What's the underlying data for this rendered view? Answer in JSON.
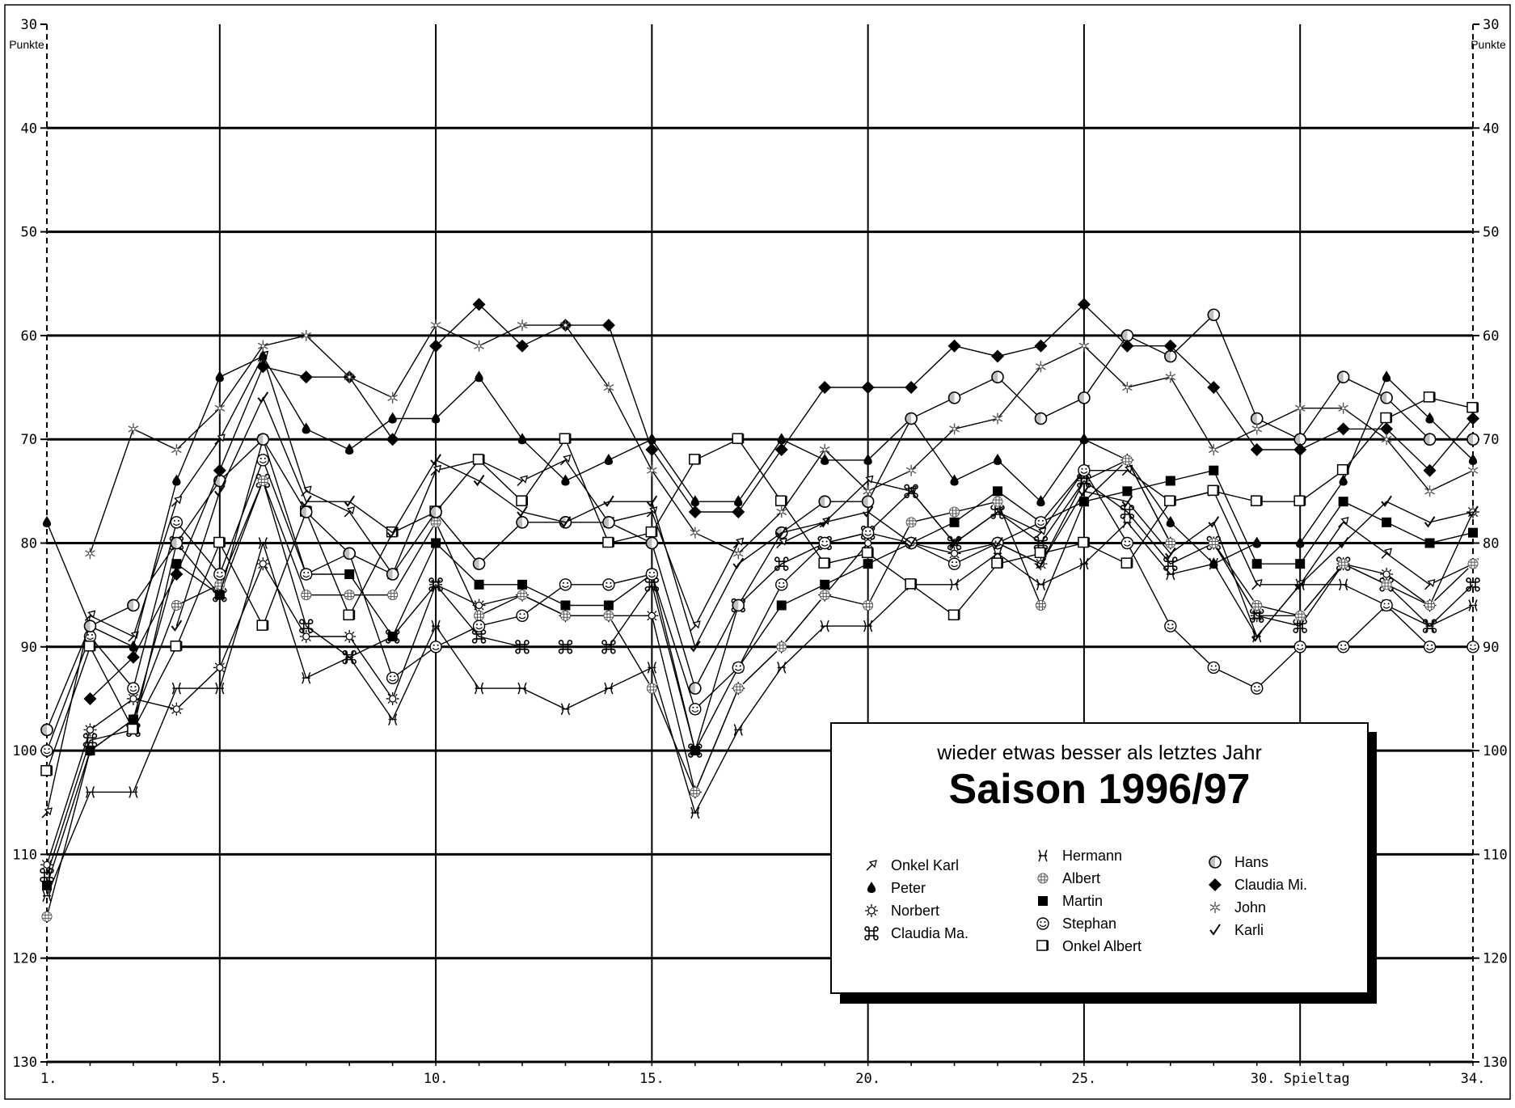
{
  "chart_data": {
    "type": "line",
    "subtitle": "wieder etwas besser als letztes Jahr",
    "title": "Saison 1996/97",
    "ylabel": "Punkte",
    "xlabel": "Spieltag",
    "ylim": [
      30,
      130
    ],
    "y_inverted": true,
    "xlim": [
      1,
      34
    ],
    "y_ticks": [
      30,
      40,
      50,
      60,
      70,
      80,
      90,
      100,
      110,
      120,
      130
    ],
    "x_tick_labels": [
      {
        "x": 1,
        "label": "1."
      },
      {
        "x": 5,
        "label": "5."
      },
      {
        "x": 10,
        "label": "10."
      },
      {
        "x": 15,
        "label": "15."
      },
      {
        "x": 20,
        "label": "20."
      },
      {
        "x": 25,
        "label": "25."
      },
      {
        "x": 30,
        "label": "30. Spieltag"
      },
      {
        "x": 34,
        "label": "34."
      }
    ],
    "grid": true,
    "legend_position": "bottom-right",
    "x": [
      1,
      2,
      3,
      4,
      5,
      6,
      7,
      8,
      9,
      10,
      11,
      12,
      13,
      14,
      15,
      16,
      17,
      18,
      19,
      20,
      21,
      22,
      23,
      24,
      25,
      26,
      27,
      28,
      29,
      30,
      31,
      32,
      33,
      34
    ],
    "series": [
      {
        "name": "Onkel Karl",
        "marker": "arrow",
        "values": [
          106,
          87,
          89,
          76,
          70,
          62,
          75,
          77,
          83,
          73,
          72,
          74,
          72,
          78,
          77,
          88,
          80,
          80,
          78,
          74,
          75,
          80,
          77,
          79,
          73,
          73,
          76,
          75,
          84,
          84,
          78,
          81,
          84,
          82
        ]
      },
      {
        "name": "Peter",
        "marker": "drop",
        "values": [
          78,
          88,
          90,
          74,
          64,
          62,
          69,
          71,
          68,
          68,
          64,
          70,
          74,
          72,
          70,
          76,
          76,
          70,
          72,
          72,
          68,
          74,
          72,
          76,
          70,
          72,
          78,
          82,
          80,
          80,
          74,
          64,
          68,
          72
        ]
      },
      {
        "name": "Norbert",
        "marker": "sun",
        "values": [
          111,
          98,
          95,
          96,
          92,
          82,
          89,
          89,
          95,
          84,
          86,
          85,
          87,
          87,
          87,
          104,
          94,
          90,
          85,
          80,
          80,
          81,
          80,
          82,
          74,
          72,
          80,
          80,
          87,
          87,
          82,
          83,
          86,
          77
        ]
      },
      {
        "name": "Claudia Ma.",
        "marker": "command",
        "values": [
          112,
          99,
          98,
          80,
          85,
          74,
          88,
          91,
          89,
          84,
          89,
          90,
          90,
          90,
          84,
          100,
          86,
          82,
          80,
          79,
          75,
          80,
          77,
          80,
          74,
          77,
          82,
          80,
          87,
          88,
          82,
          84,
          88,
          84
        ]
      },
      {
        "name": "Hermann",
        "marker": "pisces",
        "values": [
          114,
          104,
          104,
          94,
          94,
          80,
          93,
          91,
          97,
          88,
          94,
          94,
          96,
          94,
          92,
          106,
          98,
          92,
          88,
          88,
          84,
          84,
          81,
          84,
          82,
          78,
          83,
          82,
          89,
          84,
          84,
          86,
          88,
          86
        ]
      },
      {
        "name": "Albert",
        "marker": "grid",
        "values": [
          116,
          100,
          97,
          86,
          84,
          74,
          85,
          85,
          85,
          78,
          87,
          85,
          87,
          87,
          94,
          104,
          94,
          90,
          85,
          86,
          78,
          77,
          76,
          86,
          76,
          72,
          80,
          80,
          86,
          87,
          82,
          84,
          86,
          82
        ]
      },
      {
        "name": "Martin",
        "marker": "square",
        "values": [
          113,
          100,
          97,
          82,
          85,
          70,
          83,
          83,
          89,
          80,
          84,
          84,
          86,
          86,
          83,
          100,
          92,
          86,
          84,
          82,
          80,
          78,
          75,
          78,
          76,
          75,
          74,
          73,
          82,
          82,
          76,
          78,
          80,
          79
        ]
      },
      {
        "name": "Stephan",
        "marker": "smiley",
        "values": [
          100,
          89,
          94,
          78,
          83,
          72,
          83,
          81,
          93,
          90,
          88,
          87,
          84,
          84,
          83,
          96,
          92,
          84,
          80,
          79,
          80,
          82,
          80,
          78,
          73,
          80,
          88,
          92,
          94,
          90,
          90,
          86,
          90,
          90
        ]
      },
      {
        "name": "Onkel Albert",
        "marker": "box",
        "values": [
          102,
          90,
          98,
          90,
          80,
          88,
          77,
          87,
          79,
          77,
          72,
          76,
          70,
          80,
          79,
          72,
          70,
          76,
          82,
          81,
          84,
          87,
          82,
          81,
          80,
          82,
          76,
          75,
          76,
          76,
          73,
          68,
          66,
          67
        ]
      },
      {
        "name": "Hans",
        "marker": "circle",
        "values": [
          98,
          88,
          86,
          80,
          74,
          70,
          77,
          81,
          83,
          77,
          82,
          78,
          78,
          78,
          80,
          94,
          86,
          79,
          76,
          76,
          68,
          66,
          64,
          68,
          66,
          60,
          62,
          58,
          68,
          70,
          64,
          66,
          70,
          70
        ]
      },
      {
        "name": "Claudia Mi.",
        "marker": "diamond",
        "values": [
          null,
          95,
          91,
          83,
          73,
          63,
          64,
          64,
          70,
          61,
          57,
          61,
          59,
          59,
          71,
          77,
          77,
          71,
          65,
          65,
          65,
          61,
          62,
          61,
          57,
          61,
          61,
          65,
          71,
          71,
          69,
          69,
          73,
          68
        ]
      },
      {
        "name": "John",
        "marker": "snowflake",
        "values": [
          null,
          81,
          69,
          71,
          67,
          61,
          60,
          64,
          66,
          59,
          61,
          59,
          59,
          65,
          73,
          79,
          81,
          77,
          71,
          75,
          73,
          69,
          68,
          63,
          61,
          65,
          64,
          71,
          69,
          67,
          67,
          70,
          75,
          73
        ]
      },
      {
        "name": "Karli",
        "marker": "check",
        "values": [
          null,
          null,
          null,
          88,
          75,
          66,
          76,
          76,
          79,
          72,
          74,
          77,
          78,
          76,
          76,
          90,
          82,
          79,
          78,
          77,
          80,
          80,
          80,
          82,
          75,
          76,
          81,
          78,
          89,
          84,
          80,
          76,
          78,
          77
        ]
      }
    ]
  }
}
